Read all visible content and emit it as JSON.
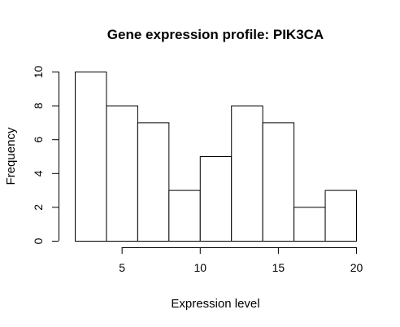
{
  "chart_data": {
    "type": "bar",
    "title": "Gene expression profile: PIK3CA",
    "xlabel": "Expression level",
    "ylabel": "Frequency",
    "bins": [
      {
        "start": 2,
        "end": 4,
        "count": 10
      },
      {
        "start": 4,
        "end": 6,
        "count": 8
      },
      {
        "start": 6,
        "end": 8,
        "count": 7
      },
      {
        "start": 8,
        "end": 10,
        "count": 3
      },
      {
        "start": 10,
        "end": 12,
        "count": 5
      },
      {
        "start": 12,
        "end": 14,
        "count": 8
      },
      {
        "start": 14,
        "end": 16,
        "count": 7
      },
      {
        "start": 16,
        "end": 18,
        "count": 2
      },
      {
        "start": 18,
        "end": 20,
        "count": 3
      }
    ],
    "x_ticks": [
      "5",
      "10",
      "15",
      "20"
    ],
    "y_ticks": [
      "0",
      "2",
      "4",
      "6",
      "8",
      "10"
    ],
    "xlim": [
      2,
      20
    ],
    "ylim": [
      0,
      10
    ],
    "grid": false,
    "bar_fill": "#ffffff",
    "bar_stroke": "#000000"
  }
}
